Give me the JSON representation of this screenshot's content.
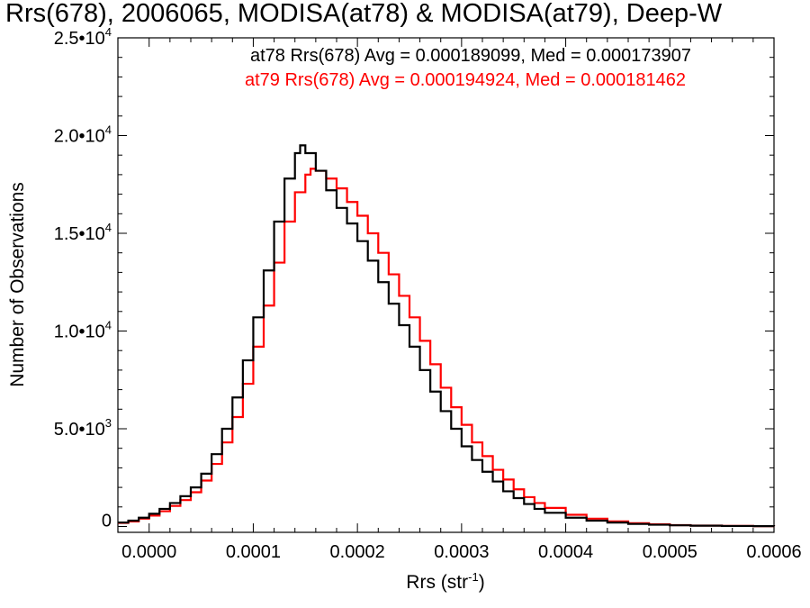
{
  "chart_data": {
    "type": "line",
    "title": "Rrs(678), 2006065, MODISA(at78) & MODISA(at79), Deep-W",
    "xlabel": "Rrs (str",
    "xlabel_sup": "-1",
    "xlabel_close": ")",
    "ylabel": "Number of Observations",
    "xlim": [
      -3e-05,
      0.0006
    ],
    "ylim": [
      -300,
      25000
    ],
    "x_ticks": [
      {
        "value": 0.0,
        "label": "0.0000"
      },
      {
        "value": 0.0001,
        "label": "0.0001"
      },
      {
        "value": 0.0002,
        "label": "0.0002"
      },
      {
        "value": 0.0003,
        "label": "0.0003"
      },
      {
        "value": 0.0004,
        "label": "0.0004"
      },
      {
        "value": 0.0005,
        "label": "0.0005"
      },
      {
        "value": 0.0006,
        "label": "0.0006"
      }
    ],
    "y_ticks": [
      {
        "value": 0,
        "label": "0",
        "sup": ""
      },
      {
        "value": 5000,
        "label": "5.0•10",
        "sup": "3"
      },
      {
        "value": 10000,
        "label": "1.0•10",
        "sup": "4"
      },
      {
        "value": 15000,
        "label": "1.5•10",
        "sup": "4"
      },
      {
        "value": 20000,
        "label": "2.0•10",
        "sup": "4"
      },
      {
        "value": 25000,
        "label": "2.5•10",
        "sup": "4"
      }
    ],
    "grid": false,
    "legend_position": "top-right",
    "annotations": [
      {
        "text": "at78 Rrs(678) Avg = 0.000189099, Med = 0.000173907",
        "color": "#000000"
      },
      {
        "text": "at79 Rrs(678) Avg = 0.000194924, Med = 0.000181462",
        "color": "#ff0000"
      }
    ],
    "series": [
      {
        "color": "#000000",
        "x": [
          -3e-05,
          -2e-05,
          -1e-05,
          0.0,
          1e-05,
          2e-05,
          3e-05,
          4e-05,
          5e-05,
          6e-05,
          7e-05,
          8e-05,
          9e-05,
          0.0001,
          0.00011,
          0.00012,
          0.00013,
          0.00014,
          0.000145,
          0.00015,
          0.00016,
          0.00017,
          0.00018,
          0.00019,
          0.0002,
          0.00021,
          0.00022,
          0.00023,
          0.00024,
          0.00025,
          0.00026,
          0.00027,
          0.00028,
          0.00029,
          0.0003,
          0.00031,
          0.00032,
          0.00033,
          0.00034,
          0.00035,
          0.00036,
          0.00037,
          0.00038,
          0.0004,
          0.00042,
          0.00044,
          0.00046,
          0.00048,
          0.0005,
          0.00052,
          0.00055,
          0.00058,
          0.0006
        ],
        "values": [
          200,
          300,
          450,
          650,
          900,
          1200,
          1550,
          2000,
          2700,
          3700,
          5000,
          6600,
          8500,
          10700,
          13100,
          15600,
          17800,
          19100,
          19500,
          19100,
          18200,
          17200,
          16300,
          15500,
          14600,
          13600,
          12500,
          11400,
          10300,
          9200,
          8000,
          6900,
          5900,
          5000,
          4100,
          3400,
          2800,
          2300,
          1800,
          1450,
          1150,
          900,
          700,
          450,
          300,
          200,
          130,
          90,
          60,
          40,
          25,
          15,
          10
        ]
      },
      {
        "color": "#ff0000",
        "x": [
          -3e-05,
          -2e-05,
          -1e-05,
          0.0,
          1e-05,
          2e-05,
          3e-05,
          4e-05,
          5e-05,
          6e-05,
          7e-05,
          8e-05,
          9e-05,
          0.0001,
          0.00011,
          0.00012,
          0.00013,
          0.00014,
          0.00015,
          0.000155,
          0.00016,
          0.00017,
          0.00018,
          0.00019,
          0.0002,
          0.00021,
          0.00022,
          0.00023,
          0.00024,
          0.00025,
          0.00026,
          0.00027,
          0.00028,
          0.00029,
          0.0003,
          0.00031,
          0.00032,
          0.00033,
          0.00034,
          0.00035,
          0.00036,
          0.00037,
          0.00038,
          0.0004,
          0.00042,
          0.00044,
          0.00046,
          0.00048,
          0.0005,
          0.00052,
          0.00055,
          0.00058,
          0.0006
        ],
        "values": [
          180,
          260,
          400,
          560,
          780,
          1050,
          1350,
          1750,
          2350,
          3200,
          4300,
          5600,
          7300,
          9200,
          11300,
          13500,
          15600,
          17100,
          18000,
          18300,
          18200,
          17800,
          17300,
          16600,
          15900,
          15000,
          14000,
          12900,
          11800,
          10700,
          9500,
          8300,
          7100,
          6100,
          5200,
          4300,
          3600,
          2900,
          2400,
          1900,
          1500,
          1200,
          950,
          600,
          400,
          260,
          170,
          110,
          70,
          45,
          28,
          16,
          10
        ]
      }
    ]
  }
}
